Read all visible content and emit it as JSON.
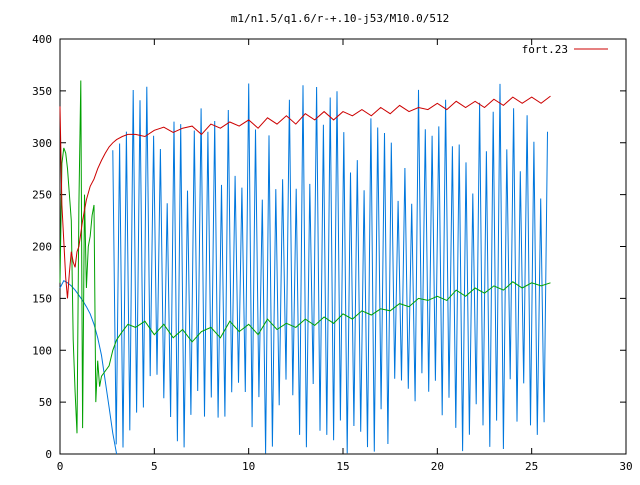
{
  "chart_data": {
    "type": "line",
    "title": "m1/n1.5/q1.6/r-+.10-j53/M10.0/512",
    "xlabel": "",
    "ylabel": "",
    "xlim": [
      0,
      30
    ],
    "ylim": [
      0,
      400
    ],
    "grid": false,
    "legend_position": "top-right",
    "x_ticks": [
      0,
      5,
      10,
      15,
      20,
      25,
      30
    ],
    "y_ticks": [
      0,
      50,
      100,
      150,
      200,
      250,
      300,
      350,
      400
    ],
    "x_tick_labels": [
      "0",
      "5",
      "10",
      "15",
      "20",
      "25",
      "30"
    ],
    "y_tick_labels": [
      "0",
      "50",
      "100",
      "150",
      "200",
      "250",
      "300",
      "350",
      "400"
    ],
    "series": [
      {
        "name": "fort.23",
        "color": "#cc0000",
        "x": [
          0,
          0.1,
          0.2,
          0.3,
          0.4,
          0.5,
          0.6,
          0.7,
          0.8,
          0.9,
          1.0,
          1.2,
          1.4,
          1.6,
          1.8,
          2.0,
          2.2,
          2.4,
          2.6,
          2.8,
          3.0,
          3.3,
          3.6,
          4.0,
          4.5,
          5.0,
          5.5,
          6.0,
          6.5,
          7.0,
          7.5,
          8.0,
          8.5,
          9.0,
          9.5,
          10.0,
          10.5,
          11.0,
          11.5,
          12.0,
          12.5,
          13.0,
          13.5,
          14.0,
          14.5,
          15.0,
          15.5,
          16.0,
          16.5,
          17.0,
          17.5,
          18.0,
          18.5,
          19.0,
          19.5,
          20.0,
          20.5,
          21.0,
          21.5,
          22.0,
          22.5,
          23.0,
          23.5,
          24.0,
          24.5,
          25.0,
          25.5,
          26.0
        ],
        "y": [
          335,
          240,
          205,
          170,
          150,
          175,
          195,
          185,
          180,
          195,
          200,
          225,
          245,
          258,
          265,
          275,
          283,
          290,
          296,
          300,
          303,
          306,
          308,
          308,
          306,
          312,
          315,
          310,
          314,
          316,
          308,
          318,
          314,
          320,
          316,
          322,
          314,
          324,
          318,
          326,
          318,
          328,
          322,
          330,
          322,
          330,
          326,
          332,
          326,
          334,
          328,
          336,
          330,
          334,
          332,
          338,
          332,
          340,
          334,
          340,
          334,
          342,
          336,
          344,
          338,
          344,
          338,
          345
        ]
      },
      {
        "color": "#00a000",
        "x": [
          0,
          0.1,
          0.2,
          0.3,
          0.4,
          0.5,
          0.6,
          0.7,
          0.8,
          0.9,
          1.0,
          1.1,
          1.2,
          1.3,
          1.4,
          1.5,
          1.6,
          1.7,
          1.8,
          1.9,
          2.0,
          2.1,
          2.2,
          2.4,
          2.6,
          2.8,
          3.0,
          3.3,
          3.6,
          4.0,
          4.5,
          5.0,
          5.5,
          6.0,
          6.5,
          7.0,
          7.5,
          8.0,
          8.5,
          9.0,
          9.5,
          10.0,
          10.5,
          11.0,
          11.5,
          12.0,
          12.5,
          13.0,
          13.5,
          14.0,
          14.5,
          15.0,
          15.5,
          16.0,
          16.5,
          17.0,
          17.5,
          18.0,
          18.5,
          19.0,
          19.5,
          20.0,
          20.5,
          21.0,
          21.5,
          22.0,
          22.5,
          23.0,
          23.5,
          24.0,
          24.5,
          25.0,
          25.5,
          26.0
        ],
        "y": [
          165,
          280,
          295,
          290,
          275,
          250,
          225,
          110,
          60,
          20,
          240,
          360,
          25,
          250,
          160,
          200,
          210,
          230,
          240,
          50,
          90,
          65,
          75,
          80,
          85,
          100,
          110,
          118,
          125,
          122,
          128,
          115,
          125,
          112,
          120,
          108,
          118,
          122,
          112,
          128,
          118,
          125,
          115,
          130,
          120,
          126,
          122,
          130,
          124,
          132,
          126,
          135,
          130,
          138,
          134,
          140,
          138,
          145,
          142,
          150,
          148,
          152,
          148,
          158,
          152,
          160,
          155,
          162,
          158,
          166,
          160,
          165,
          162,
          165
        ]
      },
      {
        "color": "#0077dd",
        "x": [
          0,
          0.2,
          0.4,
          0.6,
          0.8,
          1.0,
          1.2,
          1.4,
          1.6,
          1.8,
          2.0,
          2.2,
          2.4,
          2.6,
          2.8,
          3.0
        ],
        "y": [
          160,
          167,
          165,
          162,
          158,
          153,
          148,
          142,
          135,
          125,
          112,
          95,
          70,
          45,
          20,
          0
        ]
      }
    ],
    "oscillation_series": {
      "color": "#0077dd",
      "x_start": 2.8,
      "x_end": 26.0,
      "x_step": 0.18,
      "y_range": [
        0,
        360
      ]
    }
  }
}
